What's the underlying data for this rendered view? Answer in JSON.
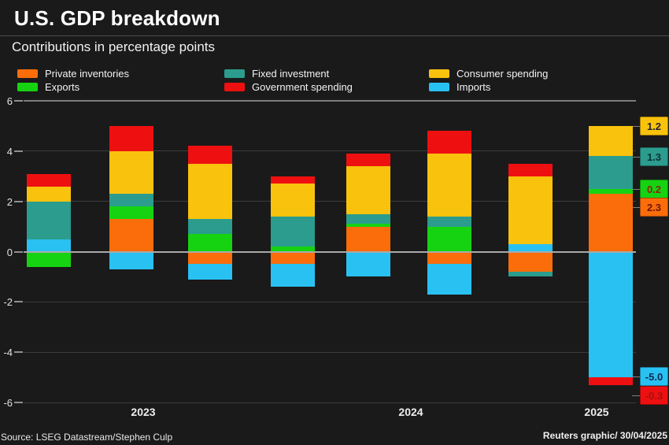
{
  "title": "U.S. GDP breakdown",
  "subtitle": "Contributions in percentage points",
  "colors": {
    "background": "#1a1a1a",
    "private_inventories": "#fa6d0a",
    "exports": "#16d312",
    "fixed_investment": "#2b9c8d",
    "government_spending": "#ee1010",
    "consumer_spending": "#f9c20d",
    "imports": "#29c1f2",
    "gridline": "#3c3c3c",
    "zero_line": "#a9a9a9"
  },
  "legend": [
    {
      "label": "Private inventories",
      "color": "#fa6d0a"
    },
    {
      "label": "Fixed investment",
      "color": "#2b9c8d"
    },
    {
      "label": "Consumer spending",
      "color": "#f9c20d"
    },
    {
      "label": "Exports",
      "color": "#16d312"
    },
    {
      "label": "Government spending",
      "color": "#ee1010"
    },
    {
      "label": "Imports",
      "color": "#29c1f2"
    }
  ],
  "chart_data": {
    "type": "bar",
    "stacked": true,
    "bar_count": 8,
    "title": "U.S. GDP breakdown",
    "subtitle": "Contributions in percentage points",
    "ylim": [
      -6,
      6
    ],
    "ytick_labels": [
      "6",
      "4",
      "2",
      "0",
      "-2",
      "-4",
      "-6"
    ],
    "yticks": [
      6,
      4,
      2,
      0,
      -2,
      -4,
      -6
    ],
    "x_tick_labels": [
      "2023",
      "2024",
      "2025"
    ],
    "grid": "horizontal",
    "legend_position": "top",
    "series": [
      {
        "key": "private-inventories",
        "name": "Private inventories",
        "color": "#fa6d0a",
        "values": [
          0,
          1.3,
          -0.5,
          -0.5,
          1.0,
          -0.5,
          -0.8,
          2.3
        ]
      },
      {
        "key": "exports",
        "name": "Exports",
        "color": "#16d312",
        "values": [
          -0.6,
          0.5,
          0.7,
          0.2,
          0.1,
          1.0,
          0,
          0.2
        ]
      },
      {
        "key": "imports",
        "name": "Imports",
        "color": "#29c1f2",
        "values": [
          0.5,
          -0.7,
          -0.6,
          -0.9,
          -1.0,
          -1.2,
          0.3,
          -5.0
        ]
      },
      {
        "key": "fixed-investment",
        "name": "Fixed investment",
        "color": "#2b9c8d",
        "values": [
          1.5,
          0.5,
          0.6,
          1.2,
          0.4,
          0.4,
          -0.2,
          1.3
        ]
      },
      {
        "key": "consumer-spending",
        "name": "Consumer spending",
        "color": "#f9c20d",
        "values": [
          0.6,
          1.7,
          2.2,
          1.3,
          1.9,
          2.5,
          2.7,
          1.2
        ]
      },
      {
        "key": "government-spending",
        "name": "Government spending",
        "color": "#ee1010",
        "values": [
          0.5,
          1.0,
          0.7,
          0.3,
          0.5,
          0.9,
          0.5,
          -0.3
        ]
      }
    ],
    "callouts": [
      {
        "value": "1.2",
        "series": "Consumer spending",
        "bg": "#f9c20d",
        "fg": "#1d2430"
      },
      {
        "value": "1.3",
        "series": "Fixed investment",
        "bg": "#2b9c8d",
        "fg": "#0e2f3d"
      },
      {
        "value": "0.2",
        "series": "Exports",
        "bg": "#16d312",
        "fg": "#8a2508"
      },
      {
        "value": "2.3",
        "series": "Private inventories",
        "bg": "#fa6d0a",
        "fg": "#701704"
      },
      {
        "value": "-5.0",
        "series": "Imports",
        "bg": "#29c1f2",
        "fg": "#0e2a52"
      },
      {
        "value": "-0.3",
        "series": "Government spending",
        "bg": "#ee1010",
        "fg": "#a51111"
      }
    ]
  },
  "footer": {
    "source": "Source: LSEG Datastream/Stephen Culp",
    "credit": "Reuters graphic/ 30/04/2025"
  }
}
